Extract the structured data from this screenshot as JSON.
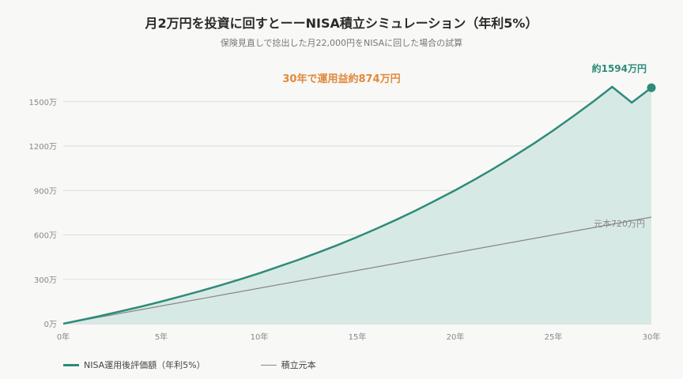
{
  "title": "月2万円を投資に回すとーーNISA積立シミュレーション（年利5%）",
  "subtitle": "保険見直しで捻出した月22,000円をNISAに回した場合の試算",
  "colors": {
    "nisa": "#2e8b7a",
    "nisa_fill": "#d5e8e3",
    "principal": "#888888",
    "profit_label": "#e08a3c",
    "grid": "#dddddd",
    "axis_text": "#888888"
  },
  "chart_data": {
    "type": "area",
    "x": [
      0,
      1,
      2,
      3,
      4,
      5,
      6,
      7,
      8,
      9,
      10,
      11,
      12,
      13,
      14,
      15,
      16,
      17,
      18,
      19,
      20,
      21,
      22,
      23,
      24,
      25,
      26,
      27,
      28,
      29,
      30
    ],
    "xlabel": "",
    "ylabel": "",
    "xlim": [
      0,
      30
    ],
    "ylim": [
      0,
      1600
    ],
    "x_ticks": [
      0,
      5,
      10,
      15,
      20,
      25,
      30
    ],
    "x_tick_labels": [
      "0年",
      "5年",
      "10年",
      "15年",
      "20年",
      "25年",
      "30年"
    ],
    "y_ticks": [
      0,
      300,
      600,
      900,
      1200,
      1500
    ],
    "y_tick_labels": [
      "0万",
      "300万",
      "600万",
      "900万",
      "1200万",
      "1500万"
    ],
    "grid": true,
    "legend_position": "bottom-left",
    "series": [
      {
        "name": "NISA運用後評価額（年利5%）",
        "values": [
          0,
          27,
          56,
          86,
          117,
          150,
          185,
          221,
          259,
          299,
          341,
          386,
          432,
          481,
          532,
          586,
          643,
          703,
          766,
          833,
          902,
          975,
          1052,
          1133,
          1217,
          1306,
          1400,
          1497,
          1600,
          1494,
          1594
        ],
        "end_label": "約1594万円"
      },
      {
        "name": "積立元本",
        "values": [
          0,
          24,
          48,
          72,
          96,
          120,
          144,
          168,
          192,
          216,
          240,
          264,
          288,
          312,
          336,
          360,
          384,
          408,
          432,
          456,
          480,
          504,
          528,
          552,
          576,
          600,
          624,
          648,
          672,
          696,
          720
        ],
        "end_label": "元本720万円"
      }
    ],
    "annotations": [
      {
        "text": "30年で運用益約874万円"
      }
    ]
  }
}
